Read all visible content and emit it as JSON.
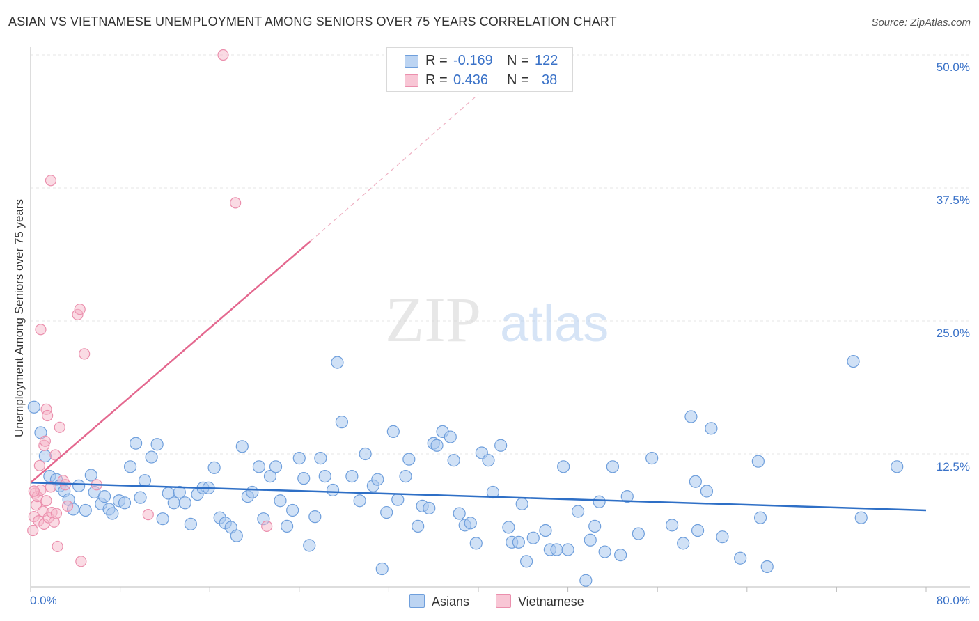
{
  "header": {
    "title": "ASIAN VS VIETNAMESE UNEMPLOYMENT AMONG SENIORS OVER 75 YEARS CORRELATION CHART",
    "source": "Source: ZipAtlas.com"
  },
  "watermark": {
    "zip": "ZIP",
    "atlas": "atlas"
  },
  "legend": {
    "rows": [
      {
        "r_label": "R =",
        "r_value": "-0.169",
        "n_label": "N =",
        "n_value": "122"
      },
      {
        "r_label": "R =",
        "r_value": "0.436",
        "n_label": "N =",
        "n_value": "38"
      }
    ]
  },
  "bottom_legend": [
    "Asians",
    "Vietnamese"
  ],
  "colors": {
    "asians_fill": "#a9c8ee",
    "asians_stroke": "#6f9fdc",
    "asians_line": "#2e6fc6",
    "vietnamese_fill": "#f5b8ca",
    "vietnamese_stroke": "#eb8fad",
    "vietnamese_line": "#e4688f",
    "tick_label": "#3a72c8",
    "grid": "#e4e4e4"
  },
  "chart_data": {
    "type": "scatter",
    "title": "ASIAN VS VIETNAMESE UNEMPLOYMENT AMONG SENIORS OVER 75 YEARS CORRELATION CHART",
    "xlabel": "",
    "ylabel": "Unemployment Among Seniors over 75 years",
    "xlim": [
      0,
      80
    ],
    "ylim": [
      0,
      50
    ],
    "x_tick_labels": [
      "0.0%",
      "80.0%"
    ],
    "y_ticks": [
      12.5,
      25.0,
      37.5,
      50.0
    ],
    "y_tick_labels": [
      "12.5%",
      "25.0%",
      "37.5%",
      "50.0%"
    ],
    "grid": true,
    "legend_position": "top-center",
    "series": [
      {
        "name": "Asians",
        "r": -0.169,
        "n": 122,
        "trend": {
          "x0": 0,
          "y0": 9.8,
          "x1": 80,
          "y1": 7.2
        },
        "points": [
          [
            0.3,
            16.9
          ],
          [
            0.9,
            14.5
          ],
          [
            1.3,
            12.3
          ],
          [
            1.7,
            10.4
          ],
          [
            2.3,
            10.1
          ],
          [
            2.6,
            9.5
          ],
          [
            3.0,
            9.0
          ],
          [
            3.4,
            8.2
          ],
          [
            3.8,
            7.3
          ],
          [
            4.3,
            9.5
          ],
          [
            4.9,
            7.2
          ],
          [
            5.4,
            10.5
          ],
          [
            5.7,
            8.9
          ],
          [
            6.3,
            7.8
          ],
          [
            6.6,
            8.5
          ],
          [
            7.0,
            7.3
          ],
          [
            7.3,
            6.9
          ],
          [
            7.9,
            8.1
          ],
          [
            8.4,
            7.9
          ],
          [
            8.9,
            11.3
          ],
          [
            9.4,
            13.5
          ],
          [
            9.8,
            8.4
          ],
          [
            10.2,
            10.0
          ],
          [
            10.8,
            12.2
          ],
          [
            11.3,
            13.4
          ],
          [
            11.8,
            6.4
          ],
          [
            12.3,
            8.8
          ],
          [
            12.8,
            7.9
          ],
          [
            13.3,
            8.9
          ],
          [
            13.8,
            7.9
          ],
          [
            14.3,
            5.9
          ],
          [
            14.9,
            8.7
          ],
          [
            15.4,
            9.3
          ],
          [
            15.9,
            9.3
          ],
          [
            16.4,
            11.2
          ],
          [
            16.9,
            6.5
          ],
          [
            17.4,
            6.0
          ],
          [
            17.9,
            5.6
          ],
          [
            18.4,
            4.8
          ],
          [
            18.9,
            13.2
          ],
          [
            19.4,
            8.5
          ],
          [
            19.8,
            8.9
          ],
          [
            20.4,
            11.3
          ],
          [
            20.8,
            6.4
          ],
          [
            21.4,
            10.4
          ],
          [
            21.9,
            11.3
          ],
          [
            22.3,
            8.1
          ],
          [
            22.9,
            5.7
          ],
          [
            23.4,
            7.2
          ],
          [
            24.0,
            12.1
          ],
          [
            24.4,
            10.2
          ],
          [
            24.9,
            3.9
          ],
          [
            25.4,
            6.6
          ],
          [
            25.9,
            12.1
          ],
          [
            26.3,
            10.4
          ],
          [
            27.0,
            9.1
          ],
          [
            27.4,
            21.1
          ],
          [
            27.8,
            15.5
          ],
          [
            28.7,
            10.4
          ],
          [
            29.4,
            8.1
          ],
          [
            29.9,
            12.5
          ],
          [
            30.6,
            9.5
          ],
          [
            31.0,
            10.1
          ],
          [
            31.4,
            1.7
          ],
          [
            31.8,
            7.0
          ],
          [
            32.4,
            14.6
          ],
          [
            32.8,
            8.2
          ],
          [
            33.5,
            10.4
          ],
          [
            33.8,
            12.0
          ],
          [
            34.6,
            5.7
          ],
          [
            35.0,
            7.6
          ],
          [
            35.6,
            7.4
          ],
          [
            36.0,
            13.5
          ],
          [
            36.3,
            13.3
          ],
          [
            36.8,
            14.6
          ],
          [
            37.5,
            14.1
          ],
          [
            37.8,
            11.9
          ],
          [
            38.3,
            6.9
          ],
          [
            38.8,
            5.8
          ],
          [
            39.3,
            6.0
          ],
          [
            39.8,
            4.1
          ],
          [
            40.3,
            12.6
          ],
          [
            40.9,
            11.9
          ],
          [
            41.3,
            8.9
          ],
          [
            42.0,
            13.3
          ],
          [
            42.7,
            5.6
          ],
          [
            43.0,
            4.2
          ],
          [
            43.6,
            4.2
          ],
          [
            43.9,
            7.8
          ],
          [
            44.3,
            2.4
          ],
          [
            44.9,
            4.6
          ],
          [
            46.0,
            5.3
          ],
          [
            46.4,
            3.5
          ],
          [
            47.0,
            3.5
          ],
          [
            47.6,
            11.3
          ],
          [
            48.0,
            3.5
          ],
          [
            48.9,
            7.1
          ],
          [
            49.6,
            0.6
          ],
          [
            50.0,
            4.4
          ],
          [
            50.4,
            5.7
          ],
          [
            50.8,
            8.0
          ],
          [
            51.3,
            3.3
          ],
          [
            52.0,
            11.3
          ],
          [
            52.7,
            3.0
          ],
          [
            53.3,
            8.5
          ],
          [
            54.3,
            5.0
          ],
          [
            55.5,
            12.1
          ],
          [
            57.3,
            5.8
          ],
          [
            58.3,
            4.1
          ],
          [
            59.0,
            16.0
          ],
          [
            59.4,
            9.9
          ],
          [
            59.6,
            5.3
          ],
          [
            60.4,
            9.0
          ],
          [
            60.8,
            14.9
          ],
          [
            61.8,
            4.7
          ],
          [
            63.4,
            2.7
          ],
          [
            65.0,
            11.8
          ],
          [
            65.2,
            6.5
          ],
          [
            65.8,
            1.9
          ],
          [
            73.5,
            21.2
          ],
          [
            74.2,
            6.5
          ],
          [
            77.4,
            11.3
          ]
        ]
      },
      {
        "name": "Vietnamese",
        "r": 0.436,
        "n": 38,
        "trend": {
          "x0": 0,
          "y0": 9.8,
          "x1": 25,
          "y1": 32.5
        },
        "trend_extended": {
          "x0": 25,
          "y0": 32.5,
          "x1": 40,
          "y1": 46.3
        },
        "points": [
          [
            0.2,
            5.3
          ],
          [
            0.3,
            6.6
          ],
          [
            0.4,
            8.8
          ],
          [
            0.5,
            7.7
          ],
          [
            0.6,
            8.5
          ],
          [
            0.7,
            6.2
          ],
          [
            0.8,
            11.4
          ],
          [
            0.9,
            9.1
          ],
          [
            0.9,
            24.2
          ],
          [
            1.1,
            7.1
          ],
          [
            1.2,
            13.3
          ],
          [
            1.2,
            5.9
          ],
          [
            1.3,
            13.7
          ],
          [
            1.4,
            8.1
          ],
          [
            1.4,
            16.7
          ],
          [
            1.5,
            16.1
          ],
          [
            1.6,
            6.5
          ],
          [
            1.8,
            9.4
          ],
          [
            1.8,
            38.2
          ],
          [
            1.9,
            7.0
          ],
          [
            2.1,
            6.1
          ],
          [
            2.2,
            12.4
          ],
          [
            2.3,
            6.9
          ],
          [
            2.4,
            3.8
          ],
          [
            2.6,
            15.0
          ],
          [
            2.9,
            10.0
          ],
          [
            3.1,
            9.6
          ],
          [
            3.3,
            7.6
          ],
          [
            4.2,
            25.6
          ],
          [
            4.4,
            26.1
          ],
          [
            4.5,
            2.4
          ],
          [
            4.8,
            21.9
          ],
          [
            5.9,
            9.6
          ],
          [
            10.5,
            6.8
          ],
          [
            17.2,
            50.0
          ],
          [
            18.3,
            36.1
          ],
          [
            21.1,
            5.7
          ],
          [
            0.3,
            9.0
          ]
        ]
      }
    ]
  }
}
